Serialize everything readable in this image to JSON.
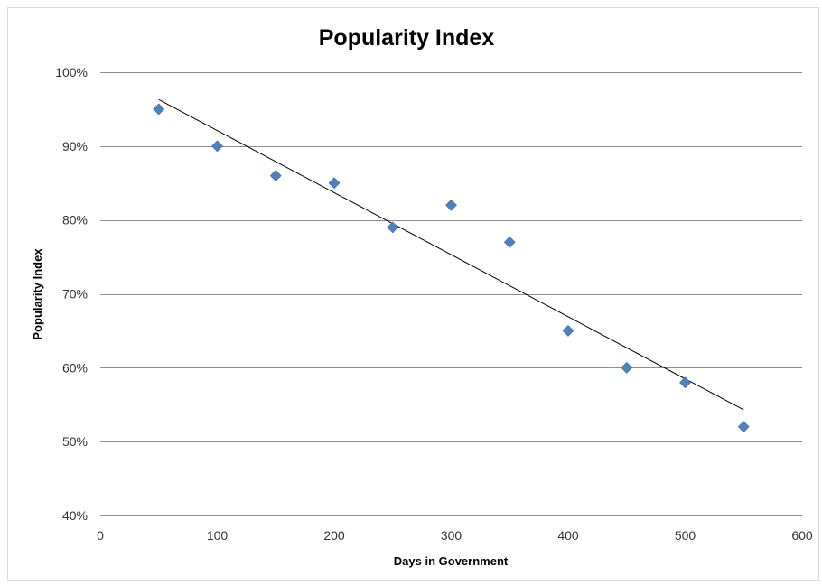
{
  "chart_data": {
    "type": "scatter",
    "title": "Popularity Index",
    "xlabel": "Days in Government",
    "ylabel": "Popularity Index",
    "xlim": [
      0,
      600
    ],
    "ylim": [
      0.4,
      1.0
    ],
    "x_ticks": [
      0,
      100,
      200,
      300,
      400,
      500,
      600
    ],
    "y_ticks": [
      0.4,
      0.5,
      0.6,
      0.7,
      0.8,
      0.9,
      1.0
    ],
    "y_tick_labels": [
      "40%",
      "50%",
      "60%",
      "70%",
      "80%",
      "90%",
      "100%"
    ],
    "x_tick_labels": [
      "0",
      "100",
      "200",
      "300",
      "400",
      "500",
      "600"
    ],
    "grid": "horizontal",
    "legend": "none",
    "series": [
      {
        "marker": "diamond",
        "color": "#4f81bd",
        "x": [
          50,
          100,
          150,
          200,
          250,
          300,
          350,
          400,
          450,
          500,
          550
        ],
        "y": [
          0.95,
          0.9,
          0.86,
          0.85,
          0.79,
          0.82,
          0.77,
          0.65,
          0.6,
          0.58,
          0.52
        ]
      }
    ],
    "trendline": {
      "type": "linear",
      "color": "#000000",
      "x": [
        50,
        550
      ],
      "y": [
        0.963,
        0.543
      ]
    }
  }
}
